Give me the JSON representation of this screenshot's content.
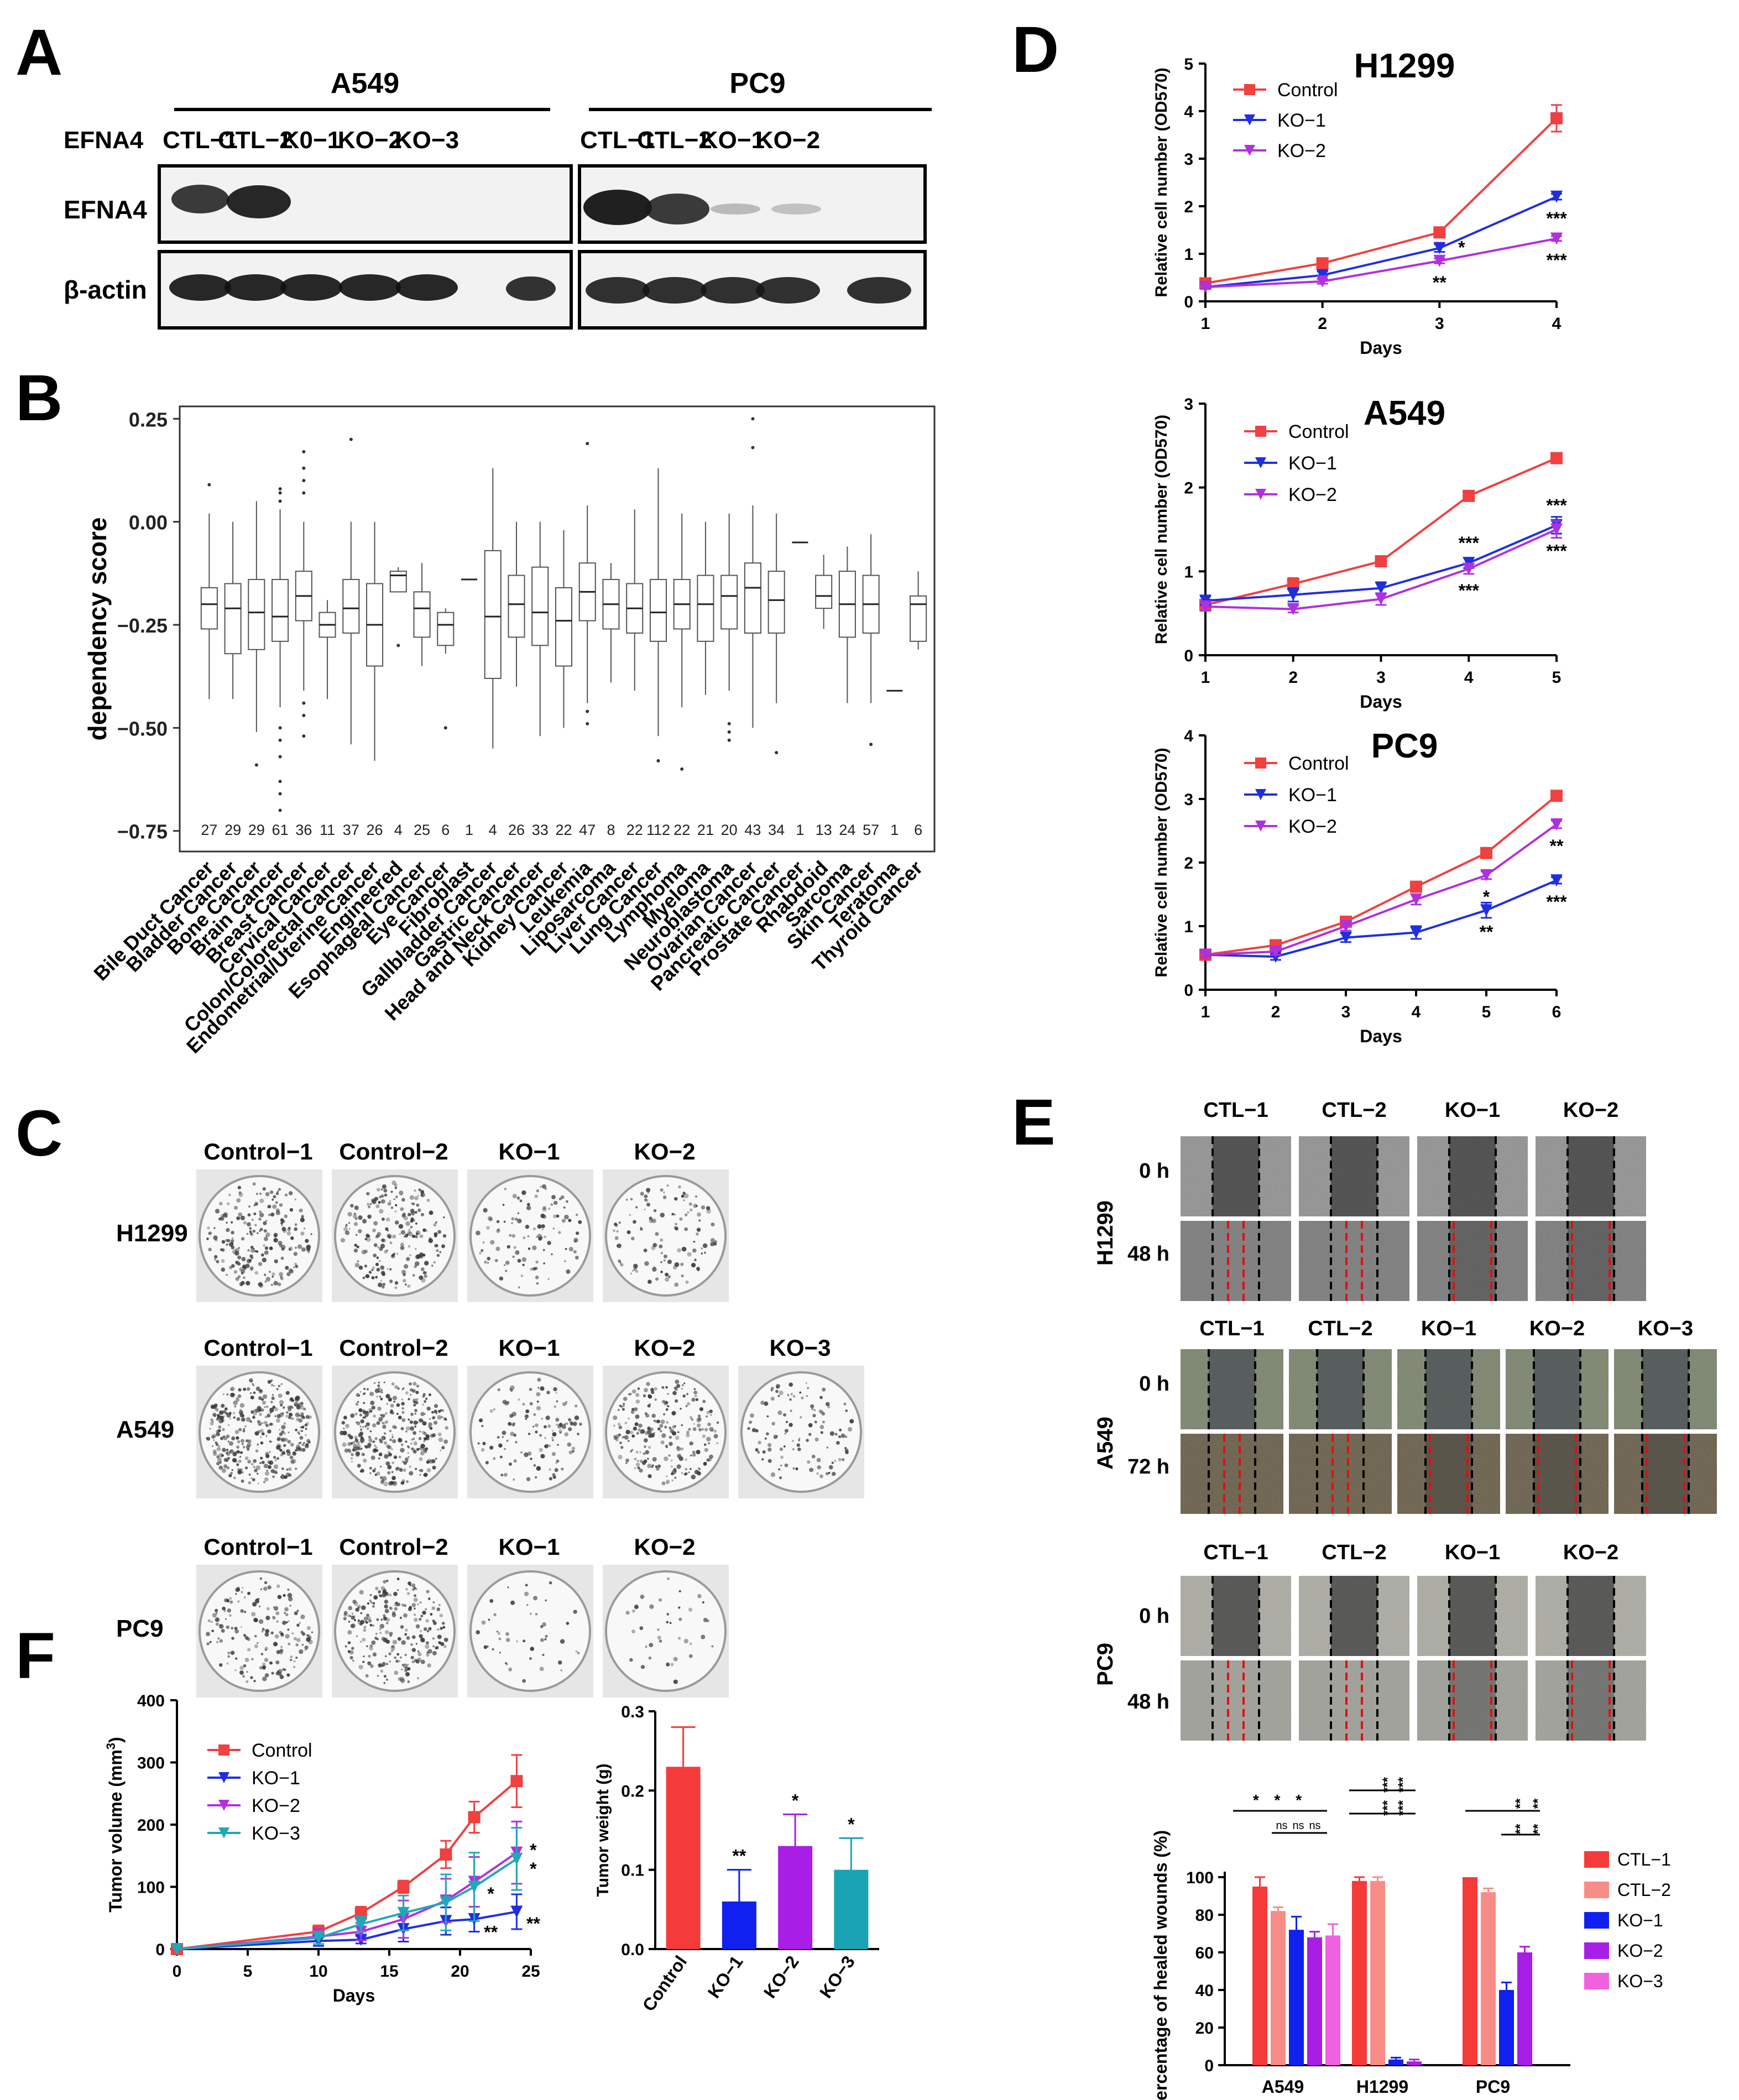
{
  "colors": {
    "control": "#f04040",
    "ko1": "#1f2fe0",
    "ko2": "#b030e0",
    "ko3": "#20a8b8",
    "ctl1_bar": "#f53a3a",
    "ctl2_bar": "#f78c86",
    "ko1_bar": "#1020ee",
    "ko2_bar": "#a81ee6",
    "ko3_bar": "#f061e0",
    "teal_bar": "#1aa3b5"
  },
  "panels": {
    "A": {
      "letter": "A",
      "row_label": "EFNA4",
      "blot_labels": [
        "EFNA4",
        "β-actin"
      ],
      "groups": [
        {
          "name": "A549",
          "lanes": [
            "CTL−1",
            "CTL−2",
            "K0−1",
            "KO−2",
            "KO−3"
          ]
        },
        {
          "name": "PC9",
          "lanes": [
            "CTL−1",
            "CTL−2",
            "KO−1",
            "KO−2"
          ]
        }
      ]
    },
    "B": {
      "letter": "B"
    },
    "C": {
      "letter": "C",
      "rows": [
        {
          "cell": "H1299",
          "labels": [
            "Control−1",
            "Control−2",
            "KO−1",
            "KO−2"
          ]
        },
        {
          "cell": "A549",
          "labels": [
            "Control−1",
            "Control−2",
            "KO−1",
            "KO−2",
            "KO−3"
          ]
        },
        {
          "cell": "PC9",
          "labels": [
            "Control−1",
            "Control−2",
            "KO−1",
            "KO−2"
          ]
        }
      ]
    },
    "D": {
      "letter": "D"
    },
    "E": {
      "letter": "E",
      "blocks": [
        {
          "cell": "H1299",
          "labels": [
            "CTL−1",
            "CTL−2",
            "KO−1",
            "KO−2"
          ],
          "times": [
            "0 h",
            "48 h"
          ]
        },
        {
          "cell": "A549",
          "labels": [
            "CTL−1",
            "CTL−2",
            "KO−1",
            "KO−2",
            "KO−3"
          ],
          "times": [
            "0 h",
            "72 h"
          ]
        },
        {
          "cell": "PC9",
          "labels": [
            "CTL−1",
            "CTL−2",
            "KO−1",
            "KO−2"
          ],
          "times": [
            "0 h",
            "48 h"
          ]
        }
      ]
    },
    "F": {
      "letter": "F"
    }
  },
  "chart_data": [
    {
      "id": "B",
      "type": "box",
      "ylabel": "dependency score",
      "ylim": [
        -0.8,
        0.28
      ],
      "yticks": [
        0.25,
        0.0,
        -0.25,
        -0.5,
        -0.75
      ],
      "ytick_labels": [
        "0.25",
        "0.00",
        "−0.25",
        "−0.50",
        "−0.75"
      ],
      "categories": [
        "Bile Duct Cancer",
        "Bladder Cancer",
        "Bone Cancer",
        "Brain Cancer",
        "Breast Cancer",
        "Cervical Cancer",
        "Colon/Colorectal Cancer",
        "Endometrial/Uterine Cancer",
        "Engineered",
        "Esophageal Cancer",
        "Eye Cancer",
        "Fibroblast",
        "Gallbladder Cancer",
        "Gastric Cancer",
        "Head and Neck Cancer",
        "Kidney Cancer",
        "Leukemia",
        "Liposarcoma",
        "Liver Cancer",
        "Lung Cancer",
        "Lymphoma",
        "Myeloma",
        "Neuroblastoma",
        "Ovarian Cancer",
        "Pancreatic Cancer",
        "Prostate Cancer",
        "Rhabdoid",
        "Sarcoma",
        "Skin Cancer",
        "Teratoma",
        "Thyroid Cancer"
      ],
      "counts": [
        "27",
        "29",
        "29",
        "61",
        "36",
        "11",
        "37",
        "26",
        "4",
        "25",
        "6",
        "1",
        "4",
        "26",
        "33",
        "22",
        "47",
        "8",
        "22",
        "112",
        "22",
        "21",
        "20",
        "43",
        "34",
        "1",
        "13",
        "24",
        "57",
        "1",
        "6"
      ],
      "boxes": [
        {
          "q1": -0.26,
          "med": -0.2,
          "q3": -0.16,
          "lo": -0.43,
          "hi": 0.02,
          "out": [
            0.09
          ]
        },
        {
          "q1": -0.32,
          "med": -0.21,
          "q3": -0.15,
          "lo": -0.43,
          "hi": 0.0,
          "out": []
        },
        {
          "q1": -0.31,
          "med": -0.22,
          "q3": -0.14,
          "lo": -0.51,
          "hi": 0.05,
          "out": [
            -0.59
          ]
        },
        {
          "q1": -0.29,
          "med": -0.23,
          "q3": -0.14,
          "lo": -0.45,
          "hi": 0.03,
          "out": [
            0.08,
            0.07,
            0.05,
            -0.5,
            -0.53,
            -0.57,
            -0.63,
            -0.66,
            -0.7
          ]
        },
        {
          "q1": -0.24,
          "med": -0.18,
          "q3": -0.12,
          "lo": -0.41,
          "hi": 0.0,
          "out": [
            0.17,
            0.13,
            0.1,
            0.07,
            -0.44,
            -0.47,
            -0.52
          ]
        },
        {
          "q1": -0.28,
          "med": -0.25,
          "q3": -0.22,
          "lo": -0.43,
          "hi": -0.19,
          "out": []
        },
        {
          "q1": -0.27,
          "med": -0.21,
          "q3": -0.14,
          "lo": -0.54,
          "hi": 0.0,
          "out": [
            0.2
          ]
        },
        {
          "q1": -0.35,
          "med": -0.25,
          "q3": -0.15,
          "lo": -0.58,
          "hi": 0.0,
          "out": []
        },
        {
          "q1": -0.17,
          "med": -0.13,
          "q3": -0.12,
          "lo": -0.17,
          "hi": -0.11,
          "out": [
            -0.3
          ]
        },
        {
          "q1": -0.28,
          "med": -0.21,
          "q3": -0.17,
          "lo": -0.35,
          "hi": -0.1,
          "out": []
        },
        {
          "q1": -0.3,
          "med": -0.25,
          "q3": -0.22,
          "lo": -0.32,
          "hi": -0.21,
          "out": [
            -0.5
          ]
        },
        {
          "q1": -0.14,
          "med": -0.14,
          "q3": -0.14,
          "lo": -0.14,
          "hi": -0.14,
          "out": []
        },
        {
          "q1": -0.38,
          "med": -0.23,
          "q3": -0.07,
          "lo": -0.55,
          "hi": 0.13,
          "out": []
        },
        {
          "q1": -0.28,
          "med": -0.2,
          "q3": -0.13,
          "lo": -0.4,
          "hi": 0.0,
          "out": []
        },
        {
          "q1": -0.3,
          "med": -0.22,
          "q3": -0.11,
          "lo": -0.52,
          "hi": 0.0,
          "out": []
        },
        {
          "q1": -0.35,
          "med": -0.24,
          "q3": -0.16,
          "lo": -0.5,
          "hi": -0.02,
          "out": []
        },
        {
          "q1": -0.24,
          "med": -0.17,
          "q3": -0.1,
          "lo": -0.44,
          "hi": 0.04,
          "out": [
            0.19,
            -0.46,
            -0.49
          ]
        },
        {
          "q1": -0.26,
          "med": -0.2,
          "q3": -0.14,
          "lo": -0.39,
          "hi": -0.1,
          "out": []
        },
        {
          "q1": -0.27,
          "med": -0.21,
          "q3": -0.15,
          "lo": -0.41,
          "hi": 0.03,
          "out": []
        },
        {
          "q1": -0.29,
          "med": -0.22,
          "q3": -0.14,
          "lo": -0.52,
          "hi": 0.13,
          "out": [
            -0.58
          ]
        },
        {
          "q1": -0.26,
          "med": -0.2,
          "q3": -0.14,
          "lo": -0.45,
          "hi": 0.02,
          "out": [
            -0.6
          ]
        },
        {
          "q1": -0.29,
          "med": -0.2,
          "q3": -0.13,
          "lo": -0.42,
          "hi": 0.0,
          "out": []
        },
        {
          "q1": -0.26,
          "med": -0.18,
          "q3": -0.13,
          "lo": -0.41,
          "hi": 0.02,
          "out": [
            -0.49,
            -0.51,
            -0.53
          ]
        },
        {
          "q1": -0.27,
          "med": -0.16,
          "q3": -0.1,
          "lo": -0.5,
          "hi": 0.04,
          "out": [
            0.25,
            0.18
          ]
        },
        {
          "q1": -0.27,
          "med": -0.19,
          "q3": -0.12,
          "lo": -0.44,
          "hi": 0.02,
          "out": [
            -0.56
          ]
        },
        {
          "q1": -0.05,
          "med": -0.05,
          "q3": -0.05,
          "lo": -0.05,
          "hi": -0.05,
          "out": []
        },
        {
          "q1": -0.21,
          "med": -0.18,
          "q3": -0.13,
          "lo": -0.26,
          "hi": -0.08,
          "out": []
        },
        {
          "q1": -0.28,
          "med": -0.2,
          "q3": -0.12,
          "lo": -0.44,
          "hi": -0.06,
          "out": []
        },
        {
          "q1": -0.27,
          "med": -0.2,
          "q3": -0.13,
          "lo": -0.44,
          "hi": -0.03,
          "out": [
            -0.54
          ]
        },
        {
          "q1": -0.41,
          "med": -0.41,
          "q3": -0.41,
          "lo": -0.41,
          "hi": -0.41,
          "out": []
        },
        {
          "q1": -0.29,
          "med": -0.2,
          "q3": -0.18,
          "lo": -0.31,
          "hi": -0.12,
          "out": []
        }
      ]
    },
    {
      "id": "D1",
      "type": "line",
      "title": "H1299",
      "xlabel": "Days",
      "ylabel": "Relative cell number (OD570)",
      "x": [
        1,
        2,
        3,
        4
      ],
      "ylim": [
        0,
        5
      ],
      "yticks": [
        0,
        1,
        2,
        3,
        4,
        5
      ],
      "series": [
        {
          "name": "Control",
          "values": [
            0.38,
            0.8,
            1.45,
            3.85
          ],
          "err": [
            0.05,
            0.05,
            0.06,
            0.28
          ]
        },
        {
          "name": "KO−1",
          "values": [
            0.3,
            0.55,
            1.12,
            2.2
          ],
          "err": [
            0.04,
            0.08,
            0.08,
            0.06
          ]
        },
        {
          "name": "KO−2",
          "values": [
            0.3,
            0.42,
            0.85,
            1.32
          ],
          "err": [
            0.04,
            0.05,
            0.05,
            0.05
          ]
        }
      ],
      "annotations": [
        {
          "x": 3,
          "y": 1.12,
          "text": "*",
          "pos": "right"
        },
        {
          "x": 3,
          "y": 0.85,
          "text": "**",
          "pos": "below"
        },
        {
          "x": 4,
          "y": 2.2,
          "text": "***",
          "pos": "below"
        },
        {
          "x": 4,
          "y": 1.32,
          "text": "***",
          "pos": "below"
        }
      ]
    },
    {
      "id": "D2",
      "type": "line",
      "title": "A549",
      "xlabel": "Days",
      "ylabel": "Relative cell number (OD570)",
      "x": [
        1,
        2,
        3,
        4,
        5
      ],
      "ylim": [
        0,
        3
      ],
      "yticks": [
        0,
        1,
        2,
        3
      ],
      "series": [
        {
          "name": "Control",
          "values": [
            0.6,
            0.85,
            1.12,
            1.9,
            2.35
          ],
          "err": [
            0.05,
            0.07,
            0.04,
            0.06,
            0.04
          ]
        },
        {
          "name": "KO−1",
          "values": [
            0.65,
            0.72,
            0.8,
            1.1,
            1.55
          ],
          "err": [
            0.05,
            0.08,
            0.07,
            0.06,
            0.1
          ]
        },
        {
          "name": "KO−2",
          "values": [
            0.58,
            0.55,
            0.67,
            1.03,
            1.5
          ],
          "err": [
            0.05,
            0.04,
            0.07,
            0.06,
            0.1
          ]
        }
      ],
      "annotations": [
        {
          "x": 4,
          "y": 1.1,
          "text": "***",
          "pos": "above"
        },
        {
          "x": 4,
          "y": 1.03,
          "text": "***",
          "pos": "below"
        },
        {
          "x": 5,
          "y": 1.55,
          "text": "***",
          "pos": "above"
        },
        {
          "x": 5,
          "y": 1.5,
          "text": "***",
          "pos": "below"
        }
      ]
    },
    {
      "id": "D3",
      "type": "line",
      "title": "PC9",
      "xlabel": "Days",
      "ylabel": "Relative cell number (OD570)",
      "x": [
        1,
        2,
        3,
        4,
        5,
        6
      ],
      "ylim": [
        0,
        4
      ],
      "yticks": [
        0,
        1,
        2,
        3,
        4
      ],
      "series": [
        {
          "name": "Control",
          "values": [
            0.55,
            0.7,
            1.07,
            1.62,
            2.15,
            3.05
          ],
          "err": [
            0.04,
            0.04,
            0.05,
            0.06,
            0.05,
            0.05
          ]
        },
        {
          "name": "KO−1",
          "values": [
            0.55,
            0.52,
            0.82,
            0.9,
            1.25,
            1.72
          ],
          "err": [
            0.04,
            0.05,
            0.07,
            0.1,
            0.12,
            0.05
          ]
        },
        {
          "name": "KO−2",
          "values": [
            0.55,
            0.6,
            1.0,
            1.42,
            1.8,
            2.6
          ],
          "err": [
            0.04,
            0.05,
            0.07,
            0.08,
            0.06,
            0.06
          ]
        }
      ],
      "annotations": [
        {
          "x": 5,
          "y": 1.8,
          "text": "*",
          "pos": "below"
        },
        {
          "x": 5,
          "y": 1.25,
          "text": "**",
          "pos": "below"
        },
        {
          "x": 6,
          "y": 2.6,
          "text": "**",
          "pos": "below"
        },
        {
          "x": 6,
          "y": 1.72,
          "text": "***",
          "pos": "below"
        }
      ]
    },
    {
      "id": "E_bar",
      "type": "bar",
      "ylabel": "Percentage of healed wounds (%)",
      "ylim": [
        0,
        100
      ],
      "yticks": [
        0,
        20,
        40,
        60,
        80,
        100
      ],
      "groups": [
        "A549",
        "H1299",
        "PC9"
      ],
      "series": [
        {
          "name": "CTL−1",
          "values": [
            95,
            98,
            100
          ],
          "err": [
            5,
            2,
            0
          ]
        },
        {
          "name": "CTL−2",
          "values": [
            82,
            98,
            92
          ],
          "err": [
            2,
            2,
            2
          ]
        },
        {
          "name": "KO−1",
          "values": [
            72,
            3,
            40
          ],
          "err": [
            7,
            1,
            4
          ]
        },
        {
          "name": "KO−2",
          "values": [
            68,
            2,
            60
          ],
          "err": [
            3,
            1,
            3
          ]
        },
        {
          "name": "KO−3",
          "values": [
            69,
            null,
            null
          ],
          "err": [
            6,
            0,
            0
          ]
        }
      ],
      "significance": {
        "A549": {
          "top": "* * *",
          "sub": [
            "ns",
            "ns",
            "ns"
          ]
        },
        "H1299": {
          "top": [
            "***",
            "***"
          ],
          "bottom": [
            "***",
            "***"
          ]
        },
        "PC9": {
          "top": [
            "**",
            "**"
          ],
          "bottom": [
            "**",
            "**"
          ]
        }
      }
    },
    {
      "id": "F1",
      "type": "line",
      "xlabel": "Days",
      "ylabel": "Tumor volume (mm",
      "ylabel_sup": "3",
      "ylabel_end": ")",
      "x": [
        0,
        10,
        13,
        16,
        19,
        21,
        24
      ],
      "xlim": [
        0,
        25
      ],
      "xticks": [
        0,
        5,
        10,
        15,
        20,
        25
      ],
      "ylim": [
        0,
        400
      ],
      "yticks": [
        0,
        100,
        200,
        300,
        400
      ],
      "series": [
        {
          "name": "Control",
          "values": [
            0,
            28,
            58,
            100,
            152,
            212,
            270
          ],
          "err": [
            0,
            10,
            10,
            10,
            22,
            25,
            42
          ]
        },
        {
          "name": "KO−1",
          "values": [
            0,
            13,
            15,
            32,
            45,
            48,
            60
          ],
          "err": [
            0,
            8,
            6,
            20,
            22,
            20,
            28
          ]
        },
        {
          "name": "KO−2",
          "values": [
            0,
            20,
            28,
            48,
            78,
            108,
            155
          ],
          "err": [
            0,
            12,
            14,
            30,
            35,
            40,
            50
          ]
        },
        {
          "name": "KO−3",
          "values": [
            0,
            18,
            40,
            58,
            75,
            100,
            145
          ],
          "err": [
            0,
            10,
            12,
            28,
            45,
            55,
            50
          ]
        }
      ],
      "annotations": [
        {
          "x": 24,
          "y": 160,
          "text": "*"
        },
        {
          "x": 24,
          "y": 130,
          "text": "*"
        },
        {
          "x": 21,
          "y": 90,
          "text": "*"
        },
        {
          "x": 21,
          "y": 28,
          "text": "**"
        },
        {
          "x": 24,
          "y": 42,
          "text": "**"
        }
      ]
    },
    {
      "id": "F2",
      "type": "bar",
      "ylabel": "Tumor weight (g)",
      "ylim": [
        0,
        0.3
      ],
      "yticks": [
        0.0,
        0.1,
        0.2,
        0.3
      ],
      "ytick_labels": [
        "0.0",
        "0.1",
        "0.2",
        "0.3"
      ],
      "categories": [
        "Control",
        "KO−1",
        "KO−2",
        "KO−3"
      ],
      "values": [
        0.23,
        0.06,
        0.13,
        0.1
      ],
      "err": [
        0.05,
        0.04,
        0.04,
        0.04
      ],
      "annotations": [
        "",
        "**",
        "*",
        "*"
      ]
    }
  ]
}
